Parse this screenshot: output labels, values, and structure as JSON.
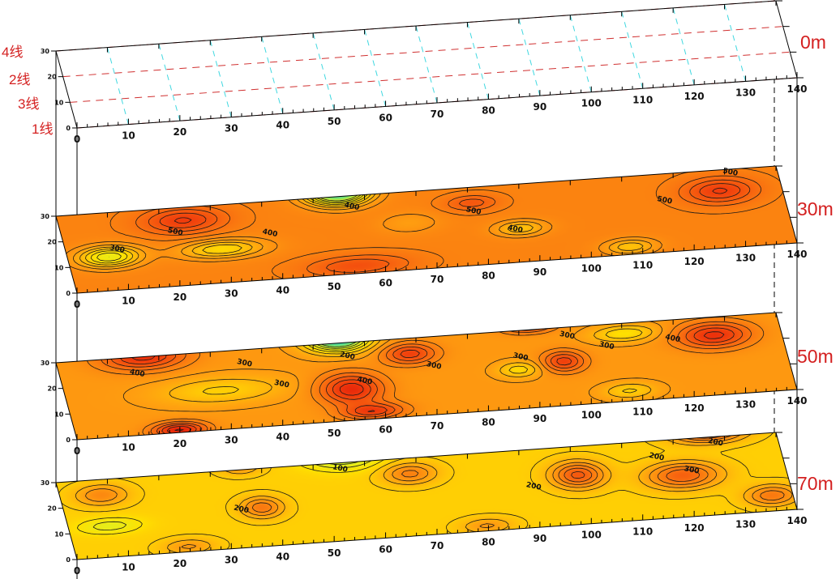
{
  "chart_data": {
    "type": "heatmap",
    "title": "",
    "xlabel": "",
    "ylabel": "",
    "x_ticks": [
      0,
      10,
      20,
      30,
      40,
      50,
      60,
      70,
      80,
      90,
      100,
      110,
      120,
      130,
      140
    ],
    "y_ticks": [
      0,
      10,
      20,
      30
    ],
    "xlim": [
      0,
      140
    ],
    "ylim": [
      0,
      30
    ],
    "survey_lines": [
      {
        "label": "4线",
        "y": 30
      },
      {
        "label": "2线",
        "y": 20
      },
      {
        "label": "3线",
        "y": 10
      },
      {
        "label": "1线",
        "y": 0
      }
    ],
    "slices": [
      {
        "depth_label": "0m",
        "type": "layout",
        "contour_interval": null
      },
      {
        "depth_label": "30m",
        "base": 470,
        "range": [
          150,
          650
        ],
        "contour_interval": 25,
        "contour_min": 275,
        "anomalies": [
          {
            "x": 24,
            "y": 25,
            "amp": 110,
            "sx": 8,
            "sy": 5
          },
          {
            "x": 8,
            "y": 13,
            "amp": -170,
            "sx": 6,
            "sy": 4
          },
          {
            "x": 30,
            "y": 13,
            "amp": -120,
            "sx": 8,
            "sy": 3.5
          },
          {
            "x": 55,
            "y": 32,
            "amp": -330,
            "sx": 6,
            "sy": 5
          },
          {
            "x": 55,
            "y": 3,
            "amp": 80,
            "sx": 10,
            "sy": 4
          },
          {
            "x": 80,
            "y": 24,
            "amp": 70,
            "sx": 5,
            "sy": 3
          },
          {
            "x": 88,
            "y": 13,
            "amp": -90,
            "sx": 5,
            "sy": 3
          },
          {
            "x": 128,
            "y": 22,
            "amp": 110,
            "sx": 7,
            "sy": 5
          },
          {
            "x": 108,
            "y": 3,
            "amp": -90,
            "sx": 5,
            "sy": 3
          },
          {
            "x": 67,
            "y": 18,
            "amp": -40,
            "sx": 6,
            "sy": 4
          }
        ],
        "contour_labels": [
          {
            "x": 10,
            "y": 16,
            "text": "300"
          },
          {
            "x": 22,
            "y": 21,
            "text": "500"
          },
          {
            "x": 40,
            "y": 18,
            "text": "400"
          },
          {
            "x": 57,
            "y": 26,
            "text": "400"
          },
          {
            "x": 80,
            "y": 21,
            "text": "500"
          },
          {
            "x": 87,
            "y": 13,
            "text": "400"
          },
          {
            "x": 117,
            "y": 20,
            "text": "500"
          },
          {
            "x": 131,
            "y": 29,
            "text": "500"
          }
        ]
      },
      {
        "depth_label": "50m",
        "base": 330,
        "range": [
          100,
          500
        ],
        "contour_interval": 25,
        "contour_min": 175,
        "anomalies": [
          {
            "x": 17,
            "y": 30,
            "amp": 130,
            "sx": 8,
            "sy": 5
          },
          {
            "x": 55,
            "y": 32,
            "amp": -250,
            "sx": 6,
            "sy": 5
          },
          {
            "x": 55,
            "y": 12,
            "amp": 140,
            "sx": 6,
            "sy": 6
          },
          {
            "x": 58,
            "y": 3,
            "amp": 110,
            "sx": 6,
            "sy": 3
          },
          {
            "x": 20,
            "y": 1,
            "amp": 150,
            "sx": 5,
            "sy": 3
          },
          {
            "x": 68,
            "y": 24,
            "amp": 110,
            "sx": 5,
            "sy": 4
          },
          {
            "x": 97,
            "y": 17,
            "amp": 110,
            "sx": 4,
            "sy": 4
          },
          {
            "x": 92,
            "y": 32,
            "amp": 120,
            "sx": 5,
            "sy": 3
          },
          {
            "x": 127,
            "y": 23,
            "amp": 130,
            "sx": 7,
            "sy": 5
          },
          {
            "x": 88,
            "y": 15,
            "amp": -70,
            "sx": 4,
            "sy": 3
          },
          {
            "x": 110,
            "y": 26,
            "amp": -80,
            "sx": 6,
            "sy": 3
          },
          {
            "x": 30,
            "y": 15,
            "amp": -60,
            "sx": 12,
            "sy": 5
          },
          {
            "x": 108,
            "y": 4,
            "amp": -60,
            "sx": 5,
            "sy": 3
          }
        ],
        "contour_labels": [
          {
            "x": 15,
            "y": 24,
            "text": "400"
          },
          {
            "x": 36,
            "y": 25,
            "text": "300"
          },
          {
            "x": 42,
            "y": 16,
            "text": "300"
          },
          {
            "x": 56,
            "y": 25,
            "text": "200"
          },
          {
            "x": 58,
            "y": 15,
            "text": "400"
          },
          {
            "x": 72,
            "y": 19,
            "text": "300"
          },
          {
            "x": 89,
            "y": 20,
            "text": "300"
          },
          {
            "x": 99,
            "y": 27,
            "text": "300"
          },
          {
            "x": 106,
            "y": 22,
            "text": "300"
          },
          {
            "x": 119,
            "y": 23,
            "text": "400"
          }
        ]
      },
      {
        "depth_label": "70m",
        "base": 170,
        "range": [
          0,
          400
        ],
        "contour_interval": 25,
        "contour_min": 75,
        "anomalies": [
          {
            "x": 8,
            "y": 24,
            "amp": 80,
            "sx": 5,
            "sy": 4
          },
          {
            "x": 38,
            "y": 15,
            "amp": 100,
            "sx": 4,
            "sy": 4
          },
          {
            "x": 68,
            "y": 24,
            "amp": 90,
            "sx": 5,
            "sy": 4
          },
          {
            "x": 100,
            "y": 19,
            "amp": 140,
            "sx": 5,
            "sy": 5
          },
          {
            "x": 120,
            "y": 16,
            "amp": 130,
            "sx": 7,
            "sy": 5
          },
          {
            "x": 127,
            "y": 32,
            "amp": 150,
            "sx": 7,
            "sy": 4
          },
          {
            "x": 136,
            "y": 6,
            "amp": 100,
            "sx": 5,
            "sy": 4
          },
          {
            "x": 56,
            "y": 33,
            "amp": -120,
            "sx": 7,
            "sy": 5
          },
          {
            "x": 8,
            "y": 12,
            "amp": -60,
            "sx": 6,
            "sy": 3
          },
          {
            "x": 36,
            "y": 31,
            "amp": 60,
            "sx": 4,
            "sy": 3
          },
          {
            "x": 22,
            "y": 2,
            "amp": 60,
            "sx": 5,
            "sy": 3
          },
          {
            "x": 80,
            "y": 2,
            "amp": 60,
            "sx": 5,
            "sy": 3
          }
        ],
        "contour_labels": [
          {
            "x": 55,
            "y": 28,
            "text": "100"
          },
          {
            "x": 34,
            "y": 15,
            "text": "200"
          },
          {
            "x": 91,
            "y": 16,
            "text": "200"
          },
          {
            "x": 116,
            "y": 24,
            "text": "200"
          },
          {
            "x": 122,
            "y": 18,
            "text": "300"
          },
          {
            "x": 128,
            "y": 28,
            "text": "200"
          }
        ]
      }
    ],
    "colormap": [
      "#30c0e0",
      "#60e080",
      "#e0f020",
      "#ffe000",
      "#ffa010",
      "#f86a10",
      "#f03c0c",
      "#e01408"
    ],
    "grid_line_colors": {
      "survey_line": "#d03030",
      "station_line": "#40d8e0"
    }
  }
}
